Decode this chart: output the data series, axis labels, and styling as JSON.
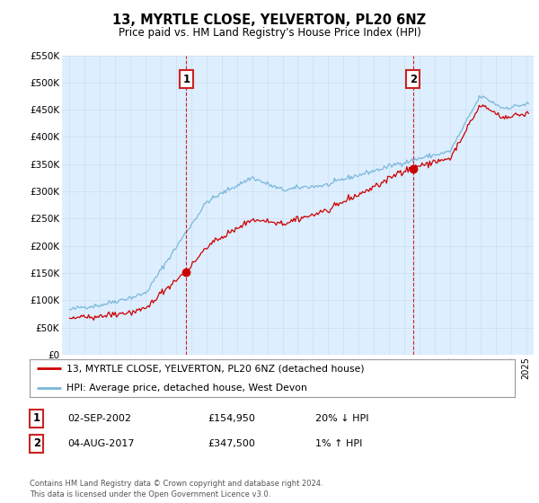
{
  "title": "13, MYRTLE CLOSE, YELVERTON, PL20 6NZ",
  "subtitle": "Price paid vs. HM Land Registry's House Price Index (HPI)",
  "legend_line1": "13, MYRTLE CLOSE, YELVERTON, PL20 6NZ (detached house)",
  "legend_line2": "HPI: Average price, detached house, West Devon",
  "transaction1_label": "1",
  "transaction1_date": "02-SEP-2002",
  "transaction1_price": "£154,950",
  "transaction1_hpi": "20% ↓ HPI",
  "transaction2_label": "2",
  "transaction2_date": "04-AUG-2017",
  "transaction2_price": "£347,500",
  "transaction2_hpi": "1% ↑ HPI",
  "footer": "Contains HM Land Registry data © Crown copyright and database right 2024.\nThis data is licensed under the Open Government Licence v3.0.",
  "hpi_color": "#7ab8d9",
  "price_color": "#cc0000",
  "chart_bg_color": "#ddeeff",
  "marker1_x": 2002.67,
  "marker2_x": 2017.58,
  "ylim_min": 0,
  "ylim_max": 550000,
  "xlim_min": 1994.5,
  "xlim_max": 2025.5,
  "background_color": "#ffffff",
  "grid_color": "#ccddee"
}
